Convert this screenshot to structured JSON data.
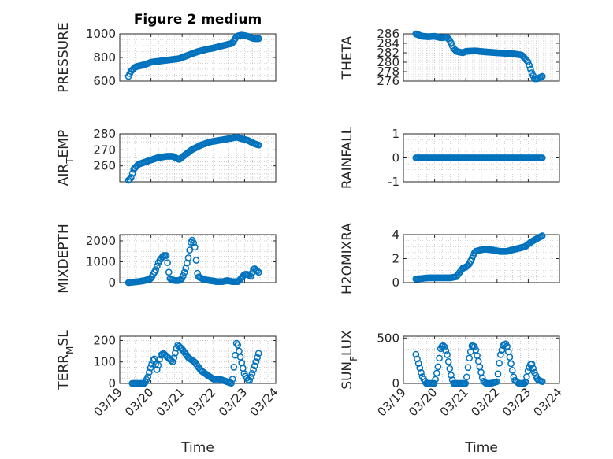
{
  "figure_title": "Figure 2 medium",
  "colors": {
    "marker": "#0072BD",
    "axis": "#262626",
    "grid": "#b0b0b0",
    "background": "#ffffff"
  },
  "chart_data": [
    {
      "type": "scatter",
      "id": "pressure",
      "title": "Figure 2 medium",
      "ylabel": "PRESSURE",
      "ylim": [
        600,
        1000
      ],
      "yticks": [
        "600",
        "800",
        "1000"
      ],
      "ytick_values": [
        600,
        800,
        1000
      ],
      "xlim": [
        0,
        5
      ],
      "xticks": [
        "03/19",
        "03/20",
        "03/21",
        "03/22",
        "03/23",
        "03/24"
      ],
      "show_xticks": false,
      "marker": "circle",
      "x_start": 0.28,
      "x_end": 4.45,
      "key_x": [
        0.28,
        0.35,
        0.5,
        0.8,
        1.0,
        1.3,
        1.6,
        1.9,
        2.2,
        2.5,
        2.8,
        3.0,
        3.3,
        3.6,
        3.75,
        3.9,
        4.1,
        4.3,
        4.45
      ],
      "key_y": [
        640,
        680,
        720,
        740,
        760,
        770,
        780,
        790,
        820,
        850,
        870,
        880,
        900,
        920,
        980,
        990,
        980,
        960,
        960
      ]
    },
    {
      "type": "scatter",
      "id": "theta",
      "ylabel": "THETA",
      "ylim": [
        276,
        286
      ],
      "yticks": [
        "276",
        "278",
        "280",
        "282",
        "284",
        "286"
      ],
      "ytick_values": [
        276,
        278,
        280,
        282,
        284,
        286
      ],
      "xlim": [
        0,
        5
      ],
      "xticks": [
        "03/19",
        "03/20",
        "03/21",
        "03/22",
        "03/23",
        "03/24"
      ],
      "show_xticks": false,
      "marker": "circle",
      "x_start": 0.4,
      "x_end": 4.45,
      "key_x": [
        0.4,
        0.6,
        0.8,
        1.0,
        1.2,
        1.4,
        1.5,
        1.6,
        1.7,
        1.9,
        2.0,
        2.3,
        2.6,
        3.0,
        3.5,
        3.8,
        4.0,
        4.1,
        4.2,
        4.3,
        4.45
      ],
      "key_y": [
        286,
        285.5,
        285.4,
        285.5,
        285.2,
        285.3,
        284.5,
        283,
        282.3,
        282.0,
        282.3,
        282.4,
        282.2,
        282.0,
        281.8,
        281.5,
        280,
        278,
        276.5,
        276.5,
        277
      ]
    },
    {
      "type": "scatter",
      "id": "air_temp",
      "ylabel": "AIR",
      "ylabel_sub": "T",
      "ylabel_rest": "EMP",
      "ylim": [
        250,
        280
      ],
      "yticks": [
        "260",
        "270",
        "280"
      ],
      "ytick_values": [
        260,
        270,
        280
      ],
      "xlim": [
        0,
        5
      ],
      "xticks": [
        "03/19",
        "03/20",
        "03/21",
        "03/22",
        "03/23",
        "03/24"
      ],
      "show_xticks": false,
      "marker": "circle",
      "x_start": 0.28,
      "x_end": 4.45,
      "key_x": [
        0.28,
        0.35,
        0.45,
        0.6,
        0.9,
        1.2,
        1.5,
        1.7,
        1.9,
        2.1,
        2.3,
        2.6,
        2.9,
        3.2,
        3.5,
        3.75,
        3.9,
        4.1,
        4.3,
        4.45
      ],
      "key_y": [
        251,
        252,
        258,
        261,
        263,
        265,
        266,
        266,
        264,
        267,
        270,
        273,
        275,
        276,
        277,
        278,
        277,
        276,
        274,
        273
      ]
    },
    {
      "type": "scatter",
      "id": "rainfall",
      "ylabel": "RAINFALL",
      "ylim": [
        -1,
        1
      ],
      "yticks": [
        "-1",
        "0",
        "1"
      ],
      "ytick_values": [
        -1,
        0,
        1
      ],
      "xlim": [
        0,
        5
      ],
      "xticks": [
        "03/19",
        "03/20",
        "03/21",
        "03/22",
        "03/23",
        "03/24"
      ],
      "show_xticks": false,
      "marker": "circle",
      "x_start": 0.4,
      "x_end": 4.45,
      "key_x": [
        0.4,
        4.45
      ],
      "key_y": [
        0,
        0
      ]
    },
    {
      "type": "scatter",
      "id": "mixdepth",
      "ylabel": "MIXDEPTH",
      "ylim": [
        0,
        2300
      ],
      "yticks": [
        "0",
        "1000",
        "2000"
      ],
      "ytick_values": [
        0,
        1000,
        2000
      ],
      "xlim": [
        0,
        5
      ],
      "xticks": [
        "03/19",
        "03/20",
        "03/21",
        "03/22",
        "03/23",
        "03/24"
      ],
      "show_xticks": false,
      "marker": "circle",
      "x_start": 0.28,
      "x_end": 4.45,
      "key_x": [
        0.28,
        0.6,
        0.8,
        1.0,
        1.15,
        1.25,
        1.4,
        1.5,
        1.6,
        1.75,
        1.9,
        2.0,
        2.1,
        2.2,
        2.3,
        2.4,
        2.5,
        2.7,
        2.9,
        3.1,
        3.3,
        3.45,
        3.6,
        3.8,
        4.0,
        4.1,
        4.2,
        4.3,
        4.45
      ],
      "key_y": [
        0,
        50,
        100,
        200,
        600,
        1000,
        1300,
        1300,
        200,
        100,
        100,
        200,
        600,
        1200,
        2100,
        1800,
        300,
        150,
        100,
        50,
        50,
        100,
        50,
        50,
        400,
        400,
        300,
        700,
        500
      ]
    },
    {
      "type": "scatter",
      "id": "h2omixra",
      "ylabel": "H2OMIXRA",
      "ylim": [
        0,
        4
      ],
      "yticks": [
        "0",
        "2",
        "4"
      ],
      "ytick_values": [
        0,
        2,
        4
      ],
      "xlim": [
        0,
        5
      ],
      "xticks": [
        "03/19",
        "03/20",
        "03/21",
        "03/22",
        "03/23",
        "03/24"
      ],
      "show_xticks": false,
      "marker": "circle",
      "x_start": 0.4,
      "x_end": 4.45,
      "key_x": [
        0.4,
        0.8,
        1.2,
        1.5,
        1.7,
        1.9,
        2.0,
        2.1,
        2.3,
        2.6,
        2.9,
        3.1,
        3.3,
        3.6,
        3.9,
        4.1,
        4.3,
        4.45
      ],
      "key_y": [
        0.3,
        0.4,
        0.4,
        0.4,
        0.5,
        1.2,
        1.3,
        1.5,
        2.6,
        2.8,
        2.7,
        2.6,
        2.6,
        2.8,
        3.0,
        3.4,
        3.7,
        3.9
      ]
    },
    {
      "type": "scatter",
      "id": "terr_msl",
      "ylabel": "TERR",
      "ylabel_sub": "M",
      "ylabel_rest": "SL",
      "ylim": [
        0,
        220
      ],
      "yticks": [
        "0",
        "100",
        "200"
      ],
      "ytick_values": [
        0,
        100,
        200
      ],
      "xlim": [
        0,
        5
      ],
      "xticks": [
        "03/19",
        "03/20",
        "03/21",
        "03/22",
        "03/23",
        "03/24"
      ],
      "show_xticks": true,
      "xlabel": "Time",
      "marker": "circle",
      "x_start": 0.4,
      "x_end": 4.45,
      "key_x": [
        0.4,
        0.8,
        0.9,
        1.0,
        1.1,
        1.2,
        1.3,
        1.4,
        1.55,
        1.7,
        1.85,
        2.0,
        2.1,
        2.2,
        2.4,
        2.6,
        2.8,
        3.0,
        3.2,
        3.4,
        3.6,
        3.75,
        3.9,
        4.0,
        4.15,
        4.3,
        4.45
      ],
      "key_y": [
        0,
        0,
        30,
        80,
        120,
        60,
        130,
        140,
        120,
        100,
        180,
        160,
        140,
        120,
        100,
        60,
        40,
        20,
        20,
        10,
        0,
        200,
        100,
        40,
        10,
        70,
        140
      ]
    },
    {
      "type": "scatter",
      "id": "sun_flux",
      "ylabel": "SUN",
      "ylabel_sub": "F",
      "ylabel_rest": "LUX",
      "ylim": [
        0,
        520
      ],
      "yticks": [
        "0",
        "500"
      ],
      "ytick_values": [
        0,
        500
      ],
      "xlim": [
        0,
        5
      ],
      "xticks": [
        "03/19",
        "03/20",
        "03/21",
        "03/22",
        "03/23",
        "03/24"
      ],
      "show_xticks": true,
      "xlabel": "Time",
      "marker": "circle",
      "x_start": 0.4,
      "x_end": 4.45,
      "key_x": [
        0.4,
        0.5,
        0.6,
        0.72,
        0.8,
        1.0,
        1.12,
        1.2,
        1.3,
        1.4,
        1.52,
        1.6,
        1.8,
        2.0,
        2.12,
        2.2,
        2.3,
        2.4,
        2.55,
        2.65,
        2.8,
        3.0,
        3.1,
        3.2,
        3.3,
        3.4,
        3.55,
        3.7,
        3.8,
        3.9,
        4.0,
        4.1,
        4.2,
        4.3,
        4.45
      ],
      "key_y": [
        320,
        200,
        80,
        0,
        0,
        0,
        200,
        400,
        420,
        320,
        100,
        0,
        0,
        0,
        300,
        420,
        400,
        250,
        30,
        0,
        0,
        20,
        300,
        420,
        440,
        300,
        40,
        0,
        0,
        0,
        150,
        230,
        120,
        40,
        20
      ]
    }
  ]
}
